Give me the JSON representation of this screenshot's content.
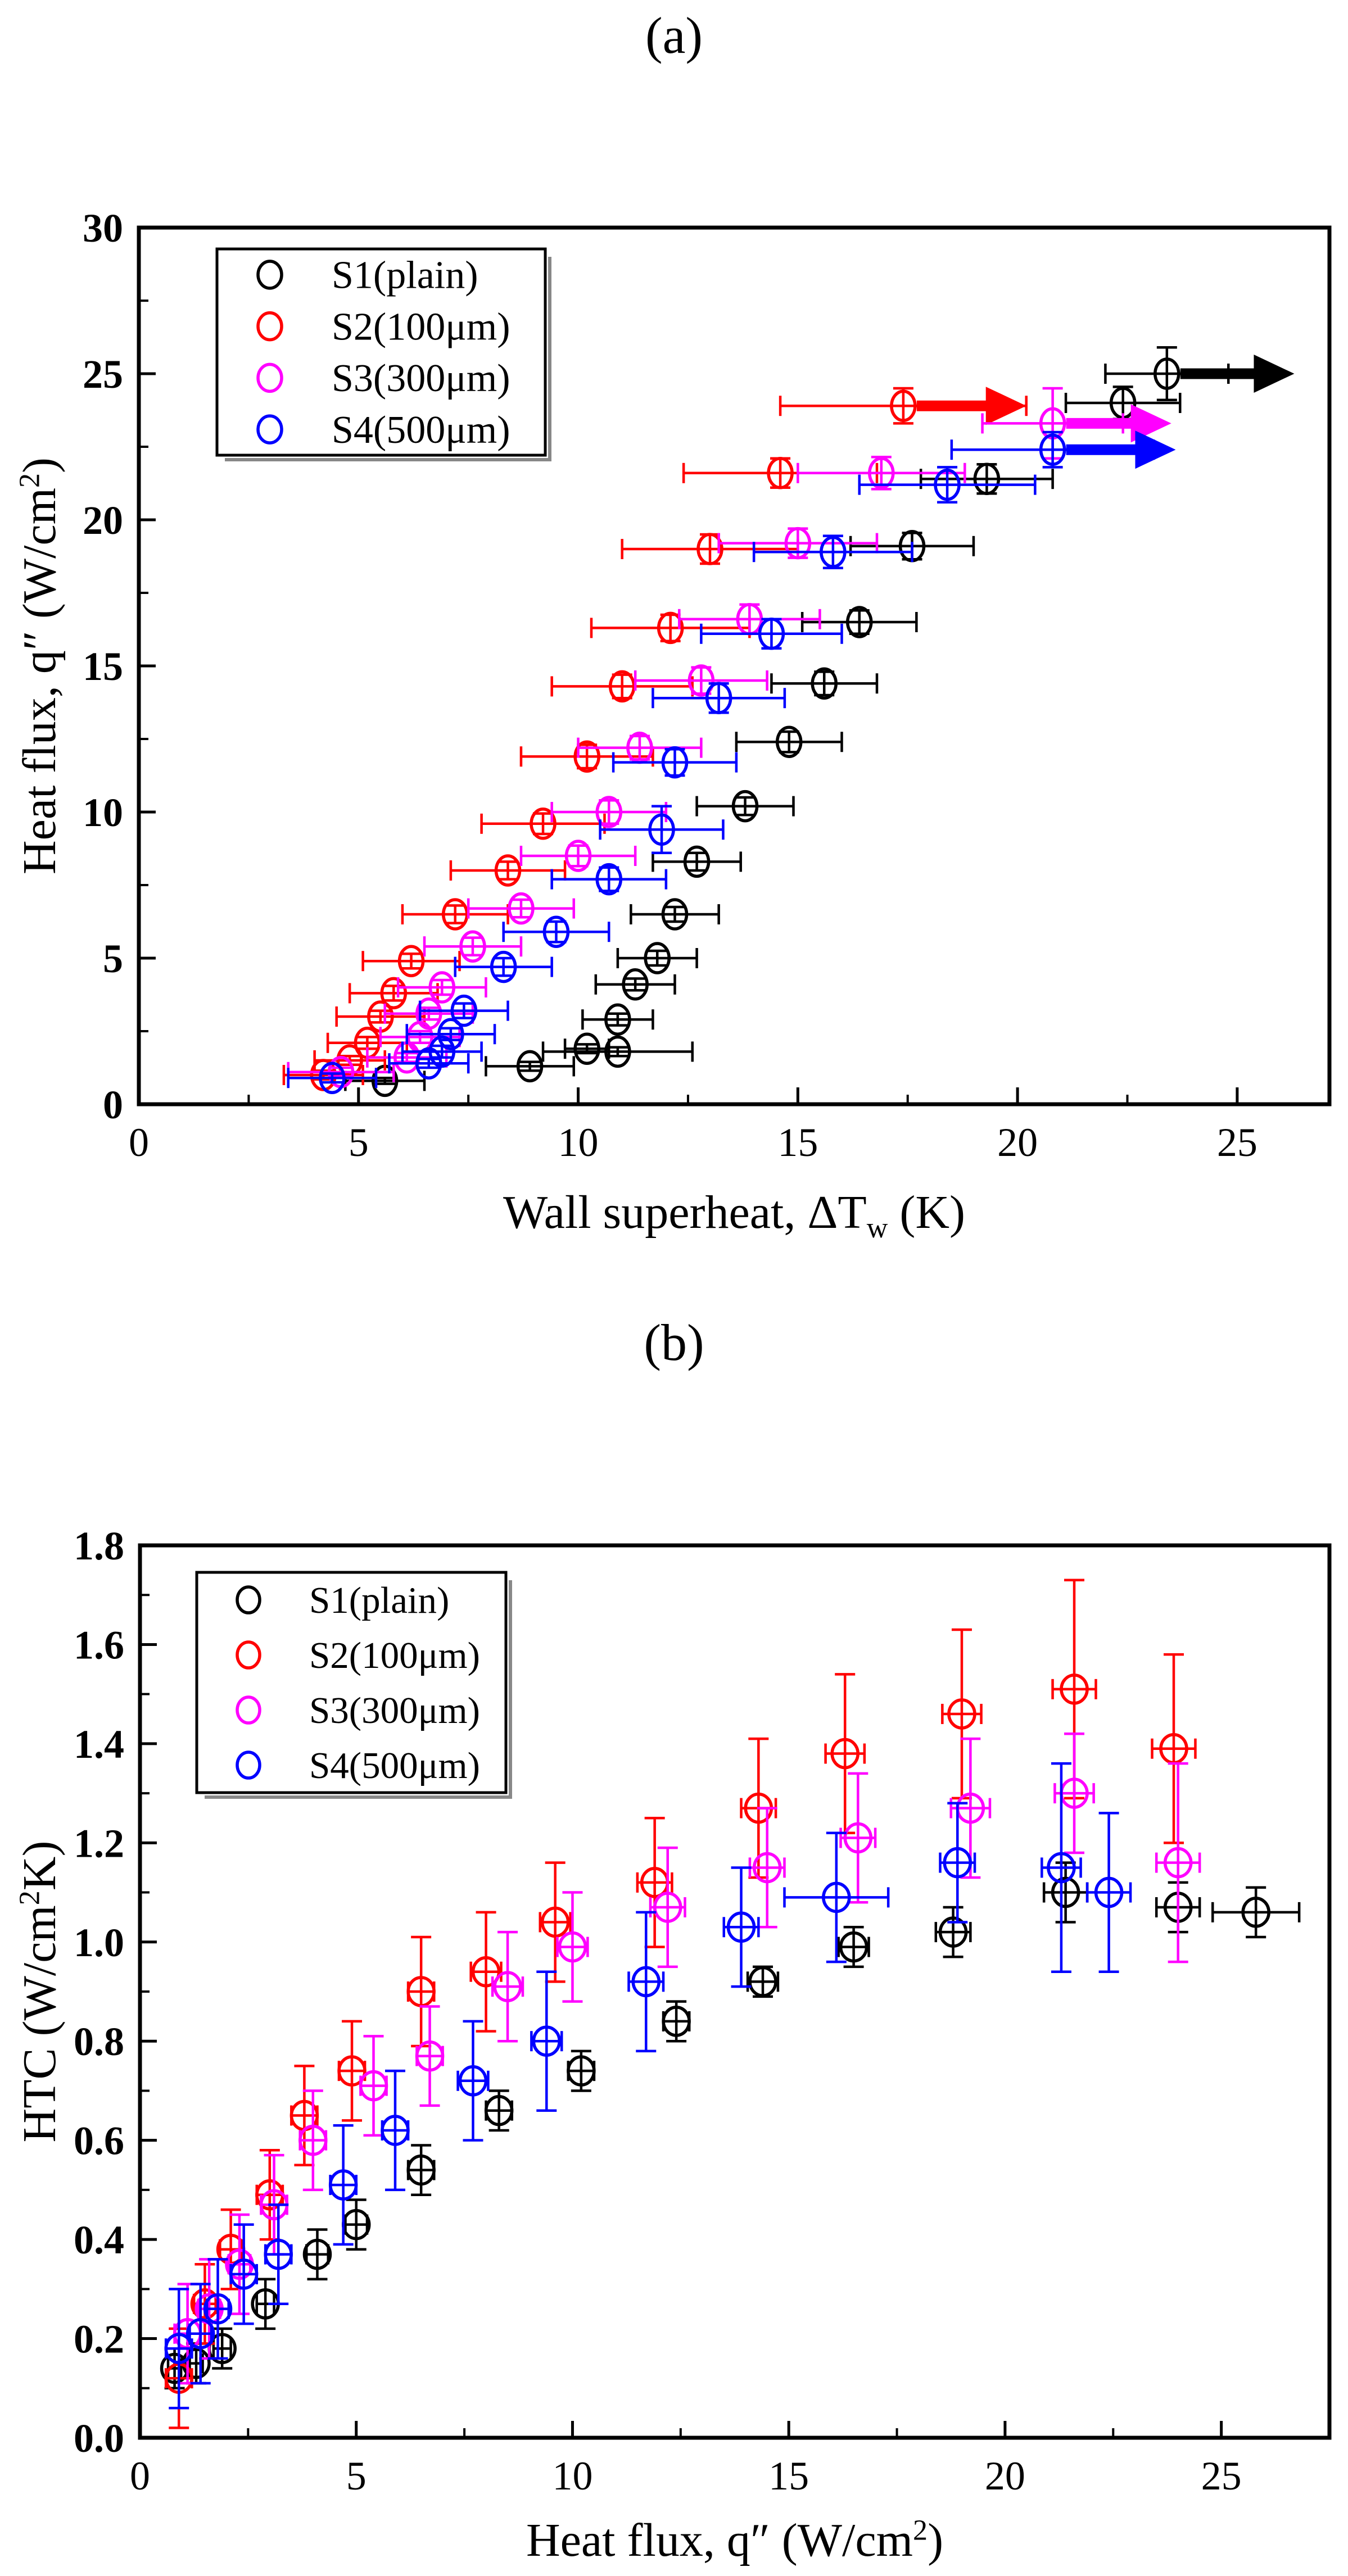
{
  "figure": {
    "background": "#ffffff",
    "panels": [
      {
        "label": "(a)"
      },
      {
        "label": "(b)"
      }
    ],
    "series_colors": {
      "S1": "#000000",
      "S2": "#ff0000",
      "S3": "#ff00ff",
      "S4": "#0000ff"
    }
  },
  "chart_data": [
    {
      "id": "plot-a",
      "type": "scatter",
      "title": "(a)",
      "xlabel": "Wall superheat, ΔTw (K)",
      "xlabel_parts": [
        {
          "t": "Wall superheat, ΔT"
        },
        {
          "t": "w",
          "s": "sub"
        },
        {
          "t": " (K)"
        }
      ],
      "ylabel": "Heat flux, q″ (W/cm²)",
      "ylabel_parts": [
        {
          "t": "Heat flux, q″ (W/cm"
        },
        {
          "t": "2",
          "s": "sup"
        },
        {
          "t": ")"
        }
      ],
      "xlim": [
        0,
        27.1
      ],
      "ylim": [
        0,
        30
      ],
      "x_ticks": [
        0,
        5,
        10,
        15,
        20,
        25
      ],
      "x_tick_labels": [
        "0",
        "5",
        "10",
        "15",
        "20",
        "25"
      ],
      "y_ticks": [
        0,
        5,
        10,
        15,
        20,
        25,
        30
      ],
      "y_tick_labels": [
        "0",
        "5",
        "10",
        "15",
        "20",
        "25",
        "30"
      ],
      "minor_step_x": 2.5,
      "minor_step_y": 2.5,
      "grid": false,
      "legend_position": "top-left",
      "legend": [
        {
          "key": "S1",
          "label": "S1(plain)",
          "color": "#000000"
        },
        {
          "key": "S2",
          "label": "S2(100μm)",
          "color": "#ff0000"
        },
        {
          "key": "S3",
          "label": "S3(300μm)",
          "color": "#ff00ff"
        },
        {
          "key": "S4",
          "label": "S4(500μm)",
          "color": "#0000ff"
        }
      ],
      "series": [
        {
          "name": "S1(plain)",
          "key": "S1",
          "color": "#000000",
          "points": [
            [
              5.6,
              0.8,
              0.9,
              0.1
            ],
            [
              8.9,
              1.3,
              1.0,
              0.15
            ],
            [
              10.2,
              1.9,
              0.5,
              0.15
            ],
            [
              10.9,
              1.8,
              1.7,
              0.15
            ],
            [
              10.9,
              2.9,
              0.8,
              0.2
            ],
            [
              11.3,
              4.1,
              0.9,
              0.2
            ],
            [
              11.8,
              5.0,
              0.9,
              0.25
            ],
            [
              12.2,
              6.5,
              1.0,
              0.25
            ],
            [
              12.7,
              8.3,
              1.0,
              0.3
            ],
            [
              13.8,
              10.2,
              1.1,
              0.3
            ],
            [
              14.8,
              12.4,
              1.2,
              0.35
            ],
            [
              15.6,
              14.4,
              1.2,
              0.4
            ],
            [
              16.4,
              16.5,
              1.3,
              0.4
            ],
            [
              17.6,
              19.1,
              1.4,
              0.45
            ],
            [
              19.3,
              21.4,
              1.5,
              0.5
            ],
            [
              22.4,
              24.0,
              1.3,
              0.55
            ],
            [
              23.4,
              25.0,
              1.4,
              0.9
            ]
          ],
          "chf_arrow": {
            "y": 25.0,
            "x_start": 23.4,
            "x_end": 26.3
          }
        },
        {
          "name": "S2(100μm)",
          "key": "S2",
          "color": "#ff0000",
          "points": [
            [
              4.2,
              1.0,
              0.9,
              0.15
            ],
            [
              4.8,
              1.5,
              0.8,
              0.15
            ],
            [
              5.2,
              2.1,
              0.9,
              0.2
            ],
            [
              5.5,
              3.0,
              1.0,
              0.2
            ],
            [
              5.8,
              3.8,
              1.0,
              0.25
            ],
            [
              6.2,
              4.9,
              1.1,
              0.25
            ],
            [
              7.2,
              6.5,
              1.2,
              0.3
            ],
            [
              8.4,
              8.0,
              1.3,
              0.3
            ],
            [
              9.2,
              9.6,
              1.4,
              0.35
            ],
            [
              10.2,
              11.9,
              1.5,
              0.4
            ],
            [
              11.0,
              14.3,
              1.6,
              0.4
            ],
            [
              12.1,
              16.3,
              1.8,
              0.45
            ],
            [
              13.0,
              19.0,
              2.0,
              0.5
            ],
            [
              14.6,
              21.6,
              2.2,
              0.5
            ],
            [
              17.4,
              23.9,
              2.8,
              0.6
            ]
          ],
          "chf_arrow": {
            "y": 23.9,
            "x_start": 17.4,
            "x_end": 20.2
          }
        },
        {
          "name": "S3(300μm)",
          "key": "S3",
          "color": "#ff00ff",
          "points": [
            [
              4.6,
              1.1,
              1.2,
              0.15
            ],
            [
              6.1,
              1.6,
              0.9,
              0.15
            ],
            [
              6.4,
              2.3,
              0.9,
              0.2
            ],
            [
              6.6,
              3.1,
              1.0,
              0.2
            ],
            [
              6.9,
              4.0,
              1.0,
              0.25
            ],
            [
              7.6,
              5.4,
              1.1,
              0.3
            ],
            [
              8.7,
              6.7,
              1.2,
              0.3
            ],
            [
              10.0,
              8.5,
              1.3,
              0.35
            ],
            [
              10.7,
              10.0,
              1.3,
              0.4
            ],
            [
              11.4,
              12.2,
              1.4,
              0.4
            ],
            [
              12.8,
              14.5,
              1.5,
              0.45
            ],
            [
              13.9,
              16.6,
              1.6,
              0.5
            ],
            [
              15.0,
              19.2,
              1.8,
              0.5
            ],
            [
              16.9,
              21.6,
              1.9,
              0.55
            ],
            [
              20.8,
              23.3,
              1.6,
              1.2
            ]
          ],
          "chf_arrow": {
            "y": 23.3,
            "x_start": 20.8,
            "x_end": 23.5
          }
        },
        {
          "name": "S4(500μm)",
          "key": "S4",
          "color": "#0000ff",
          "points": [
            [
              4.4,
              0.9,
              1.0,
              0.15
            ],
            [
              6.6,
              1.4,
              0.9,
              0.15
            ],
            [
              6.9,
              1.8,
              0.9,
              0.2
            ],
            [
              7.1,
              2.4,
              1.0,
              0.2
            ],
            [
              7.4,
              3.2,
              1.0,
              0.25
            ],
            [
              8.3,
              4.7,
              1.1,
              0.3
            ],
            [
              9.5,
              5.9,
              1.2,
              0.35
            ],
            [
              10.7,
              7.7,
              1.3,
              0.4
            ],
            [
              11.9,
              9.4,
              1.4,
              0.8
            ],
            [
              12.2,
              11.7,
              1.4,
              0.45
            ],
            [
              13.2,
              13.9,
              1.5,
              0.5
            ],
            [
              14.4,
              16.1,
              1.6,
              0.5
            ],
            [
              15.8,
              18.9,
              1.8,
              0.55
            ],
            [
              18.4,
              21.2,
              2.0,
              0.6
            ],
            [
              20.8,
              22.4,
              2.3,
              0.6
            ]
          ],
          "chf_arrow": {
            "y": 22.4,
            "x_start": 20.8,
            "x_end": 23.6
          }
        }
      ]
    },
    {
      "id": "plot-b",
      "type": "scatter",
      "title": "(b)",
      "xlabel": "Heat flux, q″ (W/cm²)",
      "xlabel_parts": [
        {
          "t": "Heat flux, q″ (W/cm"
        },
        {
          "t": "2",
          "s": "sup"
        },
        {
          "t": ")"
        }
      ],
      "ylabel": "HTC (W/cm²K)",
      "ylabel_parts": [
        {
          "t": "HTC (W/cm"
        },
        {
          "t": "2",
          "s": "sup"
        },
        {
          "t": "K)"
        }
      ],
      "xlim": [
        0,
        27.5
      ],
      "ylim": [
        0,
        1.8
      ],
      "x_ticks": [
        0,
        5,
        10,
        15,
        20,
        25
      ],
      "x_tick_labels": [
        "0",
        "5",
        "10",
        "15",
        "20",
        "25"
      ],
      "y_ticks": [
        0,
        0.2,
        0.4,
        0.6,
        0.8,
        1.0,
        1.2,
        1.4,
        1.6,
        1.8
      ],
      "y_tick_labels": [
        "0.0",
        "0.2",
        "0.4",
        "0.6",
        "0.8",
        "1.0",
        "1.2",
        "1.4",
        "1.6",
        "1.8"
      ],
      "minor_step_x": 2.5,
      "minor_step_y": 0.1,
      "grid": false,
      "legend_position": "top-left",
      "legend": [
        {
          "key": "S1",
          "label": "S1(plain)",
          "color": "#000000"
        },
        {
          "key": "S2",
          "label": "S2(100μm)",
          "color": "#ff0000"
        },
        {
          "key": "S3",
          "label": "S3(300μm)",
          "color": "#ff00ff"
        },
        {
          "key": "S4",
          "label": "S4(500μm)",
          "color": "#0000ff"
        }
      ],
      "series": [
        {
          "name": "S1(plain)",
          "key": "S1",
          "color": "#000000",
          "points": [
            [
              0.8,
              0.14,
              0.15,
              0.04
            ],
            [
              1.3,
              0.15,
              0.15,
              0.04
            ],
            [
              1.9,
              0.18,
              0.2,
              0.04
            ],
            [
              2.9,
              0.27,
              0.2,
              0.05
            ],
            [
              4.1,
              0.37,
              0.25,
              0.05
            ],
            [
              5.0,
              0.43,
              0.25,
              0.05
            ],
            [
              6.5,
              0.54,
              0.3,
              0.05
            ],
            [
              8.3,
              0.66,
              0.3,
              0.04
            ],
            [
              10.2,
              0.74,
              0.3,
              0.04
            ],
            [
              12.4,
              0.84,
              0.3,
              0.04
            ],
            [
              14.4,
              0.92,
              0.35,
              0.03
            ],
            [
              16.5,
              0.99,
              0.35,
              0.04
            ],
            [
              18.8,
              1.02,
              0.4,
              0.05
            ],
            [
              21.4,
              1.1,
              0.5,
              0.06
            ],
            [
              24.0,
              1.07,
              0.5,
              0.05
            ],
            [
              25.8,
              1.06,
              1.0,
              0.05
            ]
          ]
        },
        {
          "name": "S2(100μm)",
          "key": "S2",
          "color": "#ff0000",
          "points": [
            [
              0.9,
              0.12,
              0.3,
              0.1
            ],
            [
              1.5,
              0.27,
              0.25,
              0.08
            ],
            [
              2.1,
              0.38,
              0.25,
              0.08
            ],
            [
              3.0,
              0.49,
              0.3,
              0.09
            ],
            [
              3.8,
              0.65,
              0.3,
              0.1
            ],
            [
              4.9,
              0.74,
              0.3,
              0.1
            ],
            [
              6.5,
              0.9,
              0.3,
              0.11
            ],
            [
              8.0,
              0.94,
              0.35,
              0.12
            ],
            [
              9.6,
              1.04,
              0.35,
              0.12
            ],
            [
              11.9,
              1.12,
              0.4,
              0.13
            ],
            [
              14.3,
              1.27,
              0.4,
              0.14
            ],
            [
              16.3,
              1.38,
              0.45,
              0.16
            ],
            [
              19.0,
              1.46,
              0.45,
              0.17
            ],
            [
              21.6,
              1.51,
              0.5,
              0.22
            ],
            [
              23.9,
              1.39,
              0.5,
              0.19
            ]
          ]
        },
        {
          "name": "S3(300μm)",
          "key": "S3",
          "color": "#ff00ff",
          "points": [
            [
              1.1,
              0.21,
              0.3,
              0.1
            ],
            [
              1.6,
              0.26,
              0.25,
              0.1
            ],
            [
              2.3,
              0.35,
              0.25,
              0.1
            ],
            [
              3.1,
              0.47,
              0.3,
              0.1
            ],
            [
              4.0,
              0.6,
              0.3,
              0.1
            ],
            [
              5.4,
              0.71,
              0.3,
              0.1
            ],
            [
              6.7,
              0.77,
              0.3,
              0.1
            ],
            [
              8.5,
              0.91,
              0.35,
              0.11
            ],
            [
              10.0,
              0.99,
              0.35,
              0.11
            ],
            [
              12.2,
              1.07,
              0.4,
              0.12
            ],
            [
              14.5,
              1.15,
              0.4,
              0.12
            ],
            [
              16.6,
              1.21,
              0.4,
              0.13
            ],
            [
              19.2,
              1.27,
              0.45,
              0.14
            ],
            [
              21.6,
              1.3,
              0.45,
              0.12
            ],
            [
              24.0,
              1.16,
              0.5,
              0.2
            ]
          ]
        },
        {
          "name": "S4(500μm)",
          "key": "S4",
          "color": "#0000ff",
          "points": [
            [
              0.9,
              0.18,
              0.3,
              0.12
            ],
            [
              1.4,
              0.21,
              0.25,
              0.1
            ],
            [
              1.8,
              0.26,
              0.25,
              0.1
            ],
            [
              2.4,
              0.33,
              0.3,
              0.1
            ],
            [
              3.2,
              0.37,
              0.3,
              0.1
            ],
            [
              4.7,
              0.51,
              0.3,
              0.12
            ],
            [
              5.9,
              0.62,
              0.3,
              0.12
            ],
            [
              7.7,
              0.72,
              0.35,
              0.12
            ],
            [
              9.4,
              0.8,
              0.35,
              0.14
            ],
            [
              11.7,
              0.92,
              0.4,
              0.14
            ],
            [
              13.9,
              1.03,
              0.4,
              0.12
            ],
            [
              16.1,
              1.09,
              1.2,
              0.13
            ],
            [
              18.9,
              1.16,
              0.4,
              0.12
            ],
            [
              21.3,
              1.15,
              0.45,
              0.21
            ],
            [
              22.4,
              1.1,
              0.5,
              0.16
            ]
          ]
        }
      ]
    }
  ]
}
